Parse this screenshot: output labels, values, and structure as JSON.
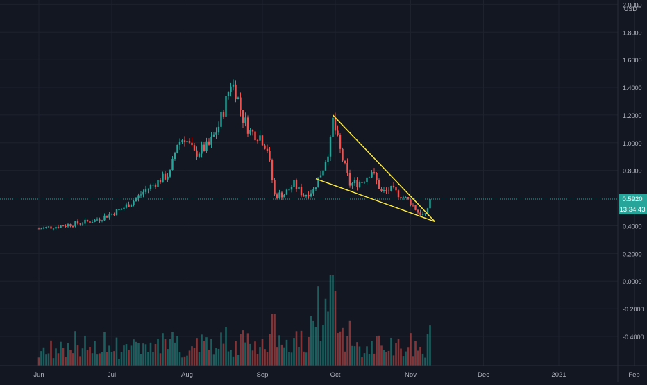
{
  "chart_data": {
    "type": "candlestick",
    "quote_currency": "USDT",
    "y_axis": {
      "ticks": [
        "2.0000",
        "1.8000",
        "1.6000",
        "1.4000",
        "1.2000",
        "1.0000",
        "0.8000",
        "0.6000",
        "0.4000",
        "0.2000",
        "0.0000",
        "-0.2000",
        "-0.4000"
      ],
      "range": [
        -0.56,
        2.0
      ]
    },
    "x_axis": {
      "labels": [
        "Jun",
        "Jul",
        "Aug",
        "Sep",
        "Oct",
        "Nov",
        "Dec",
        "2021",
        "Feb"
      ]
    },
    "last_price": "0.5920",
    "countdown": "13:34:43",
    "price_path": [
      [
        "2020-06-01",
        0.38
      ],
      [
        "2020-06-10",
        0.4
      ],
      [
        "2020-06-18",
        0.42
      ],
      [
        "2020-06-24",
        0.44
      ],
      [
        "2020-06-30",
        0.48
      ],
      [
        "2020-07-05",
        0.52
      ],
      [
        "2020-07-10",
        0.58
      ],
      [
        "2020-07-15",
        0.66
      ],
      [
        "2020-07-20",
        0.72
      ],
      [
        "2020-07-25",
        0.78
      ],
      [
        "2020-07-28",
        1.0
      ],
      [
        "2020-07-31",
        1.04
      ],
      [
        "2020-08-04",
        0.92
      ],
      [
        "2020-08-10",
        0.98
      ],
      [
        "2020-08-14",
        1.12
      ],
      [
        "2020-08-17",
        1.3
      ],
      [
        "2020-08-19",
        1.44
      ],
      [
        "2020-08-21",
        1.38
      ],
      [
        "2020-08-24",
        1.18
      ],
      [
        "2020-08-27",
        1.08
      ],
      [
        "2020-08-31",
        1.05
      ],
      [
        "2020-09-03",
        0.96
      ],
      [
        "2020-09-06",
        0.62
      ],
      [
        "2020-09-10",
        0.63
      ],
      [
        "2020-09-14",
        0.7
      ],
      [
        "2020-09-18",
        0.62
      ],
      [
        "2020-09-22",
        0.66
      ],
      [
        "2020-09-26",
        0.82
      ],
      [
        "2020-09-29",
        1.0
      ],
      [
        "2020-09-30",
        1.16
      ],
      [
        "2020-10-03",
        0.94
      ],
      [
        "2020-10-07",
        0.7
      ],
      [
        "2020-10-12",
        0.72
      ],
      [
        "2020-10-16",
        0.8
      ],
      [
        "2020-10-20",
        0.64
      ],
      [
        "2020-10-24",
        0.66
      ],
      [
        "2020-10-28",
        0.62
      ],
      [
        "2020-11-01",
        0.57
      ],
      [
        "2020-11-04",
        0.5
      ],
      [
        "2020-11-07",
        0.47
      ],
      [
        "2020-11-09",
        0.59
      ]
    ],
    "wedge_lines": [
      {
        "from": [
          "2020-09-30",
          1.2
        ],
        "to": [
          "2020-11-11",
          0.43
        ]
      },
      {
        "from": [
          "2020-09-23",
          0.74
        ],
        "to": [
          "2020-11-11",
          0.43
        ]
      }
    ],
    "colors": {
      "background": "#131722",
      "up": "#26a69a",
      "down": "#ef5350",
      "grid": "#1e222d",
      "axis_text": "#b2b5be",
      "trendline": "#ffeb3b",
      "price_label": "#26a69a"
    }
  }
}
